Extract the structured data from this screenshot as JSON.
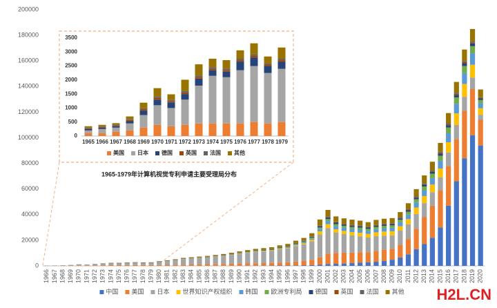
{
  "chart_data": [
    {
      "type": "bar",
      "stacked": true,
      "categories": [
        "1966",
        "1967",
        "1968",
        "1969",
        "1970",
        "1971",
        "1972",
        "1973",
        "1974",
        "1975",
        "1976",
        "1977",
        "1978",
        "1979",
        "1980",
        "1981",
        "1982",
        "1983",
        "1984",
        "1985",
        "1986",
        "1987",
        "1988",
        "1989",
        "1990",
        "1991",
        "1992",
        "1993",
        "1994",
        "1995",
        "1996",
        "1997",
        "1998",
        "1999",
        "2000",
        "2001",
        "2002",
        "2003",
        "2004",
        "2005",
        "2006",
        "2007",
        "2008",
        "2009",
        "2010",
        "2011",
        "2012",
        "2013",
        "2014",
        "2015",
        "2016",
        "2017",
        "2018",
        "2019",
        "2020"
      ],
      "ylim": [
        0,
        200000
      ],
      "yticks": [
        0,
        20000,
        40000,
        60000,
        80000,
        100000,
        120000,
        140000,
        160000,
        180000,
        200000
      ],
      "grid": false,
      "legend": "bottom",
      "series": [
        {
          "name": "中国",
          "color": "#4472c4",
          "values": [
            0,
            0,
            0,
            0,
            0,
            0,
            0,
            0,
            0,
            0,
            0,
            0,
            0,
            0,
            0,
            0,
            0,
            0,
            0,
            20,
            30,
            40,
            50,
            60,
            80,
            100,
            120,
            150,
            200,
            250,
            300,
            400,
            500,
            700,
            1000,
            1500,
            1600,
            1800,
            2200,
            2600,
            2800,
            3200,
            3800,
            4800,
            6500,
            9000,
            13000,
            17000,
            22000,
            30000,
            47000,
            66000,
            84000,
            102000,
            94000
          ]
        },
        {
          "name": "美国",
          "color": "#ed7d31",
          "values": [
            80,
            120,
            180,
            250,
            400,
            380,
            450,
            500,
            550,
            550,
            600,
            650,
            600,
            600,
            700,
            800,
            900,
            1000,
            1100,
            1200,
            1300,
            1400,
            1500,
            1600,
            1700,
            1800,
            1900,
            2000,
            2100,
            2300,
            2500,
            2900,
            3300,
            4000,
            5500,
            8000,
            8500,
            8500,
            8200,
            8000,
            7800,
            8500,
            8800,
            8500,
            10000,
            12000,
            16000,
            21000,
            25000,
            29000,
            31000,
            33000,
            37000,
            36000,
            20000
          ]
        },
        {
          "name": "日本",
          "color": "#a5a5a5",
          "values": [
            60,
            100,
            200,
            300,
            600,
            550,
            800,
            1100,
            1400,
            1400,
            1600,
            1700,
            1600,
            1650,
            2400,
            2900,
            3500,
            4300,
            4600,
            4900,
            5200,
            5700,
            6200,
            6900,
            7600,
            8300,
            8900,
            9100,
            9300,
            10200,
            10700,
            12200,
            13000,
            14500,
            18000,
            20000,
            16000,
            14500,
            13500,
            12500,
            11500,
            11500,
            11000,
            10500,
            11000,
            11500,
            11500,
            11000,
            10500,
            10000,
            10500,
            11000,
            11000,
            9000,
            4000
          ]
        },
        {
          "name": "世界知识产权组织",
          "color": "#ffc000",
          "values": [
            0,
            0,
            0,
            0,
            0,
            0,
            0,
            0,
            0,
            0,
            0,
            0,
            0,
            0,
            0,
            10,
            20,
            40,
            50,
            60,
            80,
            100,
            120,
            150,
            200,
            250,
            300,
            350,
            400,
            450,
            500,
            600,
            800,
            1200,
            2500,
            3000,
            2500,
            2500,
            2500,
            2800,
            2800,
            3000,
            3200,
            3200,
            3500,
            4000,
            5000,
            5500,
            6000,
            7000,
            8000,
            9000,
            10000,
            10000,
            5000
          ]
        },
        {
          "name": "韩国",
          "color": "#5b9bd5",
          "values": [
            0,
            0,
            0,
            0,
            0,
            0,
            0,
            0,
            0,
            0,
            0,
            0,
            0,
            0,
            0,
            0,
            0,
            0,
            0,
            10,
            20,
            30,
            40,
            50,
            60,
            80,
            100,
            150,
            250,
            400,
            500,
            600,
            800,
            1000,
            2000,
            2500,
            2500,
            2500,
            2500,
            2400,
            2400,
            2500,
            2600,
            2800,
            3000,
            3500,
            4000,
            4500,
            5000,
            6000,
            7000,
            7500,
            8500,
            9000,
            4000
          ]
        },
        {
          "name": "欧洲专利局",
          "color": "#70ad47",
          "values": [
            0,
            0,
            0,
            0,
            0,
            0,
            0,
            0,
            0,
            0,
            0,
            0,
            0,
            0,
            30,
            50,
            80,
            100,
            120,
            140,
            160,
            180,
            200,
            220,
            250,
            280,
            300,
            350,
            400,
            400,
            450,
            500,
            600,
            700,
            1000,
            1500,
            1500,
            1500,
            1500,
            1600,
            1600,
            1700,
            1800,
            1800,
            2000,
            2200,
            2500,
            3000,
            3500,
            4000,
            4500,
            5000,
            5500,
            5500,
            2500
          ]
        },
        {
          "name": "德国",
          "color": "#264478",
          "values": [
            20,
            30,
            40,
            50,
            80,
            70,
            90,
            100,
            110,
            110,
            120,
            130,
            120,
            120,
            140,
            150,
            160,
            180,
            200,
            200,
            210,
            220,
            240,
            250,
            280,
            300,
            300,
            320,
            340,
            360,
            380,
            420,
            460,
            500,
            900,
            1200,
            1100,
            1000,
            1000,
            1000,
            1000,
            1000,
            1000,
            1000,
            1100,
            1200,
            1300,
            1400,
            1500,
            1600,
            1800,
            2000,
            2200,
            2200,
            1200
          ]
        },
        {
          "name": "英国",
          "color": "#9e480e",
          "values": [
            10,
            20,
            20,
            30,
            40,
            40,
            50,
            60,
            60,
            60,
            70,
            70,
            60,
            60,
            70,
            70,
            80,
            80,
            90,
            90,
            100,
            100,
            110,
            110,
            120,
            120,
            130,
            130,
            140,
            150,
            160,
            170,
            180,
            200,
            400,
            500,
            450,
            400,
            400,
            400,
            400,
            400,
            400,
            400,
            450,
            500,
            550,
            600,
            650,
            700,
            750,
            800,
            850,
            850,
            500
          ]
        },
        {
          "name": "法国",
          "color": "#636363",
          "values": [
            10,
            10,
            20,
            20,
            30,
            30,
            40,
            40,
            50,
            50,
            60,
            60,
            50,
            50,
            60,
            60,
            70,
            70,
            80,
            80,
            90,
            90,
            100,
            100,
            110,
            110,
            120,
            120,
            130,
            130,
            140,
            150,
            160,
            180,
            400,
            500,
            450,
            400,
            400,
            400,
            400,
            400,
            400,
            400,
            450,
            500,
            550,
            600,
            650,
            700,
            750,
            800,
            850,
            850,
            500
          ]
        },
        {
          "name": "其他",
          "color": "#997300",
          "values": [
            20,
            20,
            40,
            50,
            50,
            40,
            70,
            200,
            230,
            230,
            250,
            290,
            270,
            320,
            300,
            350,
            400,
            450,
            500,
            550,
            600,
            650,
            700,
            800,
            900,
            1000,
            1100,
            1200,
            1300,
            1400,
            1500,
            1700,
            2000,
            2500,
            4500,
            5000,
            4000,
            4000,
            3900,
            3600,
            3400,
            3700,
            3800,
            3900,
            4000,
            4500,
            5500,
            6000,
            6500,
            7000,
            8000,
            8500,
            9000,
            9500,
            6000
          ]
        }
      ]
    },
    {
      "type": "bar",
      "stacked": true,
      "title": "1965-1979年计算机视觉专利申请主要受理局分布",
      "categories": [
        "1965",
        "1966",
        "1967",
        "1968",
        "1969",
        "1970",
        "1971",
        "1972",
        "1973",
        "1974",
        "1975",
        "1976",
        "1977",
        "1978",
        "1979"
      ],
      "ylim": [
        0,
        3500
      ],
      "yticks": [
        0,
        500,
        1000,
        1500,
        2000,
        2500,
        3000,
        3500
      ],
      "grid": false,
      "legend": "bottom",
      "series": [
        {
          "name": "美国",
          "color": "#ed7d31",
          "values": [
            100,
            100,
            150,
            200,
            300,
            400,
            350,
            400,
            450,
            450,
            450,
            450,
            500,
            450,
            500
          ]
        },
        {
          "name": "日本",
          "color": "#a5a5a5",
          "values": [
            100,
            150,
            150,
            250,
            450,
            700,
            650,
            900,
            1350,
            1700,
            1650,
            1900,
            2000,
            1800,
            1900
          ]
        },
        {
          "name": "德国",
          "color": "#264478",
          "values": [
            50,
            50,
            50,
            80,
            150,
            200,
            200,
            200,
            250,
            200,
            200,
            300,
            300,
            250,
            250
          ]
        },
        {
          "name": "英国",
          "color": "#9e480e",
          "values": [
            30,
            30,
            30,
            40,
            50,
            60,
            50,
            60,
            60,
            60,
            60,
            60,
            60,
            50,
            60
          ]
        },
        {
          "name": "法国",
          "color": "#636363",
          "values": [
            20,
            20,
            30,
            30,
            40,
            50,
            40,
            50,
            50,
            50,
            50,
            50,
            50,
            40,
            50
          ]
        },
        {
          "name": "其他",
          "color": "#997300",
          "values": [
            50,
            50,
            50,
            100,
            200,
            300,
            200,
            400,
            400,
            300,
            300,
            300,
            400,
            250,
            400
          ]
        }
      ]
    }
  ],
  "watermark": "H2L.CN"
}
